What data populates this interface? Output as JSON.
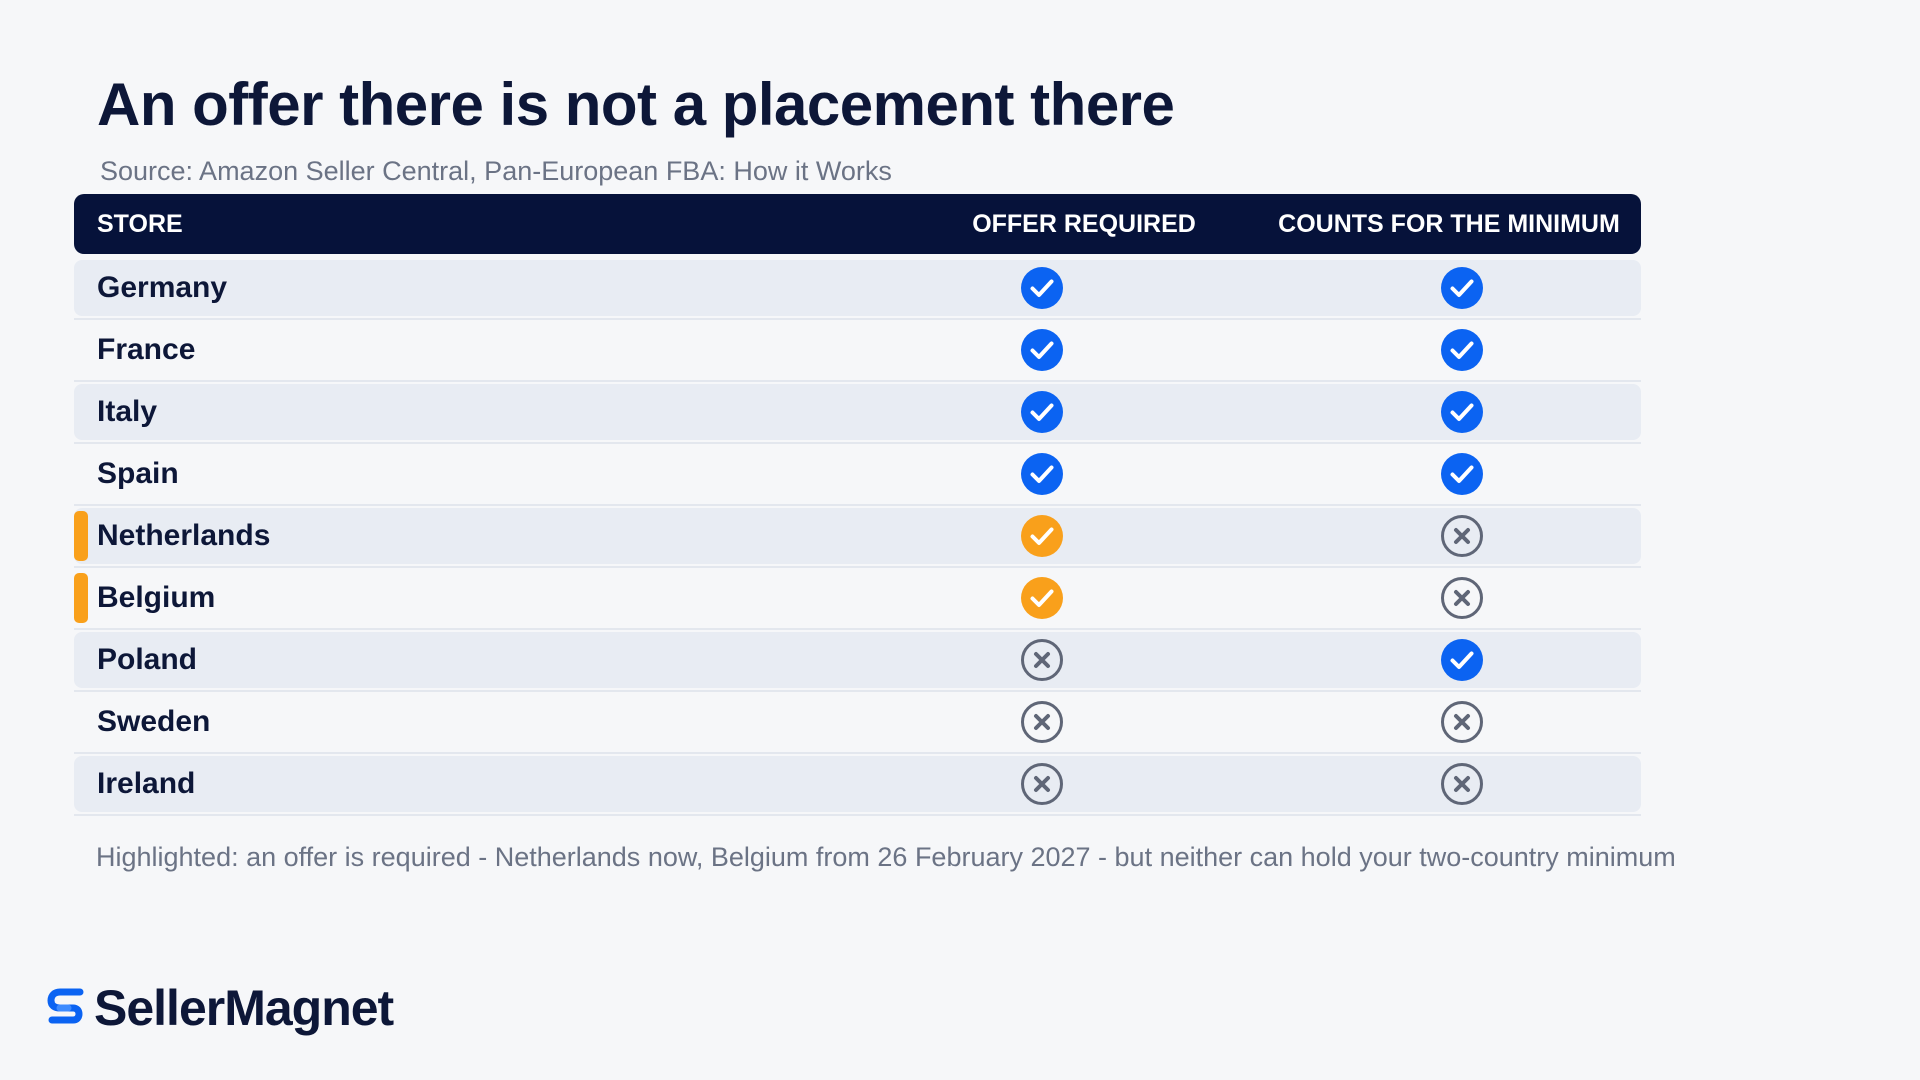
{
  "title": "An offer there is not a placement there",
  "source": "Source: Amazon Seller Central, Pan-European FBA: How it Works",
  "table": {
    "headers": {
      "store": "STORE",
      "offer_required": "OFFER REQUIRED",
      "counts_for_minimum": "COUNTS FOR THE MINIMUM"
    },
    "rows": [
      {
        "store": "Germany",
        "offer_required": "yes",
        "counts_for_minimum": "yes",
        "highlighted": false
      },
      {
        "store": "France",
        "offer_required": "yes",
        "counts_for_minimum": "yes",
        "highlighted": false
      },
      {
        "store": "Italy",
        "offer_required": "yes",
        "counts_for_minimum": "yes",
        "highlighted": false
      },
      {
        "store": "Spain",
        "offer_required": "yes",
        "counts_for_minimum": "yes",
        "highlighted": false
      },
      {
        "store": "Netherlands",
        "offer_required": "highlight-yes",
        "counts_for_minimum": "no",
        "highlighted": true
      },
      {
        "store": "Belgium",
        "offer_required": "highlight-yes",
        "counts_for_minimum": "no",
        "highlighted": true
      },
      {
        "store": "Poland",
        "offer_required": "no",
        "counts_for_minimum": "yes",
        "highlighted": false
      },
      {
        "store": "Sweden",
        "offer_required": "no",
        "counts_for_minimum": "no",
        "highlighted": false
      },
      {
        "store": "Ireland",
        "offer_required": "no",
        "counts_for_minimum": "no",
        "highlighted": false
      }
    ]
  },
  "footnote": "Highlighted: an offer is required - Netherlands now, Belgium from 26 February 2027 - but neither can hold your two-country minimum",
  "logo": {
    "text": "SellerMagnet",
    "icon": "sellermagnet-logo-icon"
  },
  "colors": {
    "header_bg": "#06123a",
    "check_blue": "#0b63f2",
    "check_orange": "#f9a01b",
    "cross_gray": "#5f6677",
    "odd_row_bg": "#e8ecf3",
    "title": "#0d1738"
  },
  "icons": {
    "yes": "check-circle-blue-icon",
    "highlight-yes": "check-circle-orange-icon",
    "no": "x-circle-gray-icon"
  }
}
